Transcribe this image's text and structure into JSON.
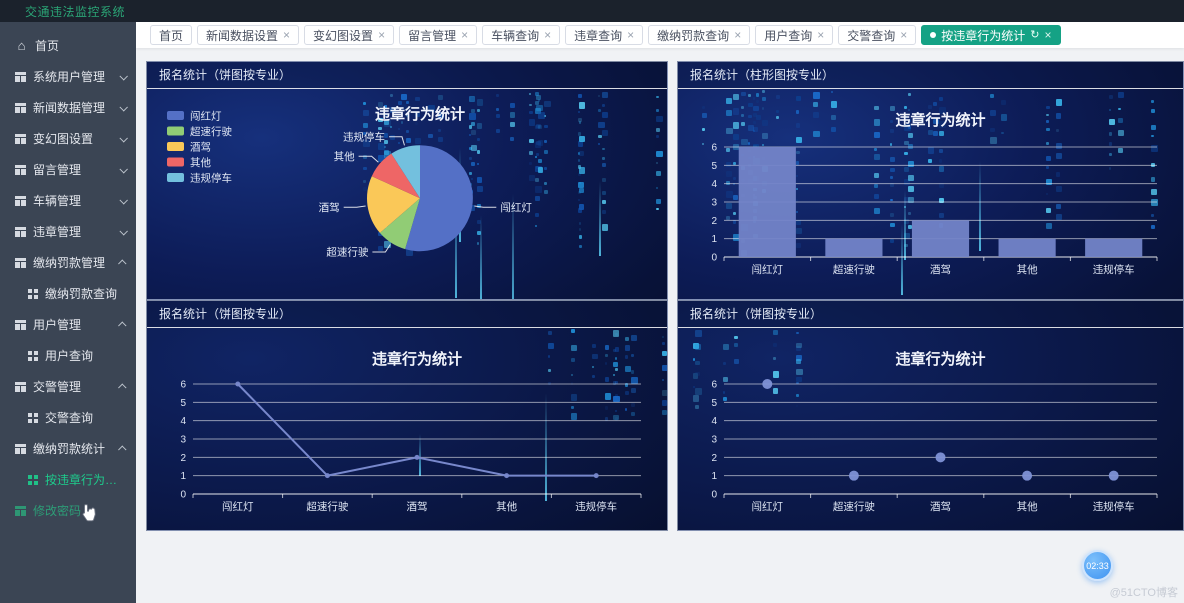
{
  "app": {
    "title": "交通违法监控系统"
  },
  "sidebar": {
    "items": [
      {
        "id": "home",
        "label": "首页",
        "icon": "home-icon",
        "level": 1
      },
      {
        "id": "system-user",
        "label": "系统用户管理",
        "icon": "table-icon",
        "level": 1,
        "arrow": "down"
      },
      {
        "id": "news-data",
        "label": "新闻数据管理",
        "icon": "table-icon",
        "level": 1,
        "arrow": "down"
      },
      {
        "id": "carousel",
        "label": "变幻图设置",
        "icon": "table-icon",
        "level": 1,
        "arrow": "down"
      },
      {
        "id": "message",
        "label": "留言管理",
        "icon": "table-icon",
        "level": 1,
        "arrow": "down"
      },
      {
        "id": "vehicle",
        "label": "车辆管理",
        "icon": "table-icon",
        "level": 1,
        "arrow": "down"
      },
      {
        "id": "violation",
        "label": "违章管理",
        "icon": "table-icon",
        "level": 1,
        "arrow": "down"
      },
      {
        "id": "fine-mgmt",
        "label": "缴纳罚款管理",
        "icon": "table-icon",
        "level": 1,
        "arrow": "up"
      },
      {
        "id": "fine-query",
        "label": "缴纳罚款查询",
        "icon": "grid-icon",
        "level": 2
      },
      {
        "id": "user-mgmt",
        "label": "用户管理",
        "icon": "table-icon",
        "level": 1,
        "arrow": "up"
      },
      {
        "id": "user-query",
        "label": "用户查询",
        "icon": "grid-icon",
        "level": 2
      },
      {
        "id": "police-mgmt",
        "label": "交警管理",
        "icon": "table-icon",
        "level": 1,
        "arrow": "up"
      },
      {
        "id": "police-query",
        "label": "交警查询",
        "icon": "grid-icon",
        "level": 2
      },
      {
        "id": "fine-stats",
        "label": "缴纳罚款统计",
        "icon": "table-icon",
        "level": 1,
        "arrow": "up"
      },
      {
        "id": "violation-stats",
        "label": "按违章行为统计",
        "icon": "grid-icon",
        "level": 2,
        "state": "active"
      },
      {
        "id": "change-password",
        "label": "修改密码",
        "icon": "table-icon",
        "level": 1,
        "state": "highlight"
      }
    ]
  },
  "tabs": [
    {
      "label": "首页",
      "closable": false
    },
    {
      "label": "新闻数据设置",
      "closable": true
    },
    {
      "label": "变幻图设置",
      "closable": true
    },
    {
      "label": "留言管理",
      "closable": true
    },
    {
      "label": "车辆查询",
      "closable": true
    },
    {
      "label": "违章查询",
      "closable": true
    },
    {
      "label": "缴纳罚款查询",
      "closable": true
    },
    {
      "label": "用户查询",
      "closable": true
    },
    {
      "label": "交警查询",
      "closable": true
    },
    {
      "label": "按违章行为统计",
      "closable": true,
      "active": true,
      "refreshable": true
    }
  ],
  "panels": [
    {
      "header": "报名统计（饼图按专业）"
    },
    {
      "header": "报名统计（柱形图按专业）"
    },
    {
      "header": "报名统计（饼图按专业）"
    },
    {
      "header": "报名统计（饼图按专业）"
    }
  ],
  "chart_data": [
    {
      "type": "pie",
      "title": "违章行为统计",
      "categories": [
        "闯红灯",
        "超速行驶",
        "酒驾",
        "其他",
        "违规停车"
      ],
      "values": [
        6,
        1,
        2,
        1,
        1
      ],
      "colors": [
        "#5470c6",
        "#91cc75",
        "#fac858",
        "#ee6666",
        "#73c0de"
      ],
      "legend_position": "left"
    },
    {
      "type": "bar",
      "title": "违章行为统计",
      "categories": [
        "闯红灯",
        "超速行驶",
        "酒驾",
        "其他",
        "违规停车"
      ],
      "values": [
        6,
        1,
        2,
        1,
        1
      ],
      "ylim": [
        0,
        6
      ],
      "yticks": [
        0,
        1,
        2,
        3,
        4,
        5,
        6
      ],
      "series_color": "#7384c8",
      "grid": true
    },
    {
      "type": "line",
      "title": "违章行为统计",
      "categories": [
        "闯红灯",
        "超速行驶",
        "酒驾",
        "其他",
        "违规停车"
      ],
      "values": [
        6,
        1,
        2,
        1,
        1
      ],
      "ylim": [
        0,
        6
      ],
      "yticks": [
        0,
        1,
        2,
        3,
        4,
        5,
        6
      ],
      "series_color": "#7888cc",
      "grid": true
    },
    {
      "type": "scatter",
      "title": "违章行为统计",
      "categories": [
        "闯红灯",
        "超速行驶",
        "酒驾",
        "其他",
        "违规停车"
      ],
      "values": [
        6,
        1,
        2,
        1,
        1
      ],
      "ylim": [
        0,
        6
      ],
      "yticks": [
        0,
        1,
        2,
        3,
        4,
        5,
        6
      ],
      "series_color": "#8092d6",
      "grid": true
    }
  ],
  "misc": {
    "clock": "02:33",
    "watermark": "@51CTO博客"
  },
  "icons": {
    "close": "×",
    "refresh": "↻",
    "home": "⌂"
  },
  "colors": {
    "accent_green": "#15a285",
    "active_menu": "#1ecb8c",
    "navbar_bg": "#1b222c",
    "sidebar_bg": "#3b4554"
  }
}
